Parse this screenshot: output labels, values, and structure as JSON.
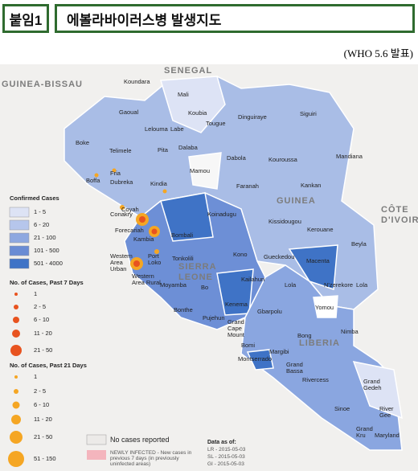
{
  "header": {
    "tag": "붙임1",
    "title": "에볼라바이러스병 발생지도",
    "source": "(WHO 5.6 발표)"
  },
  "countries": [
    "SENEGAL",
    "GUINEA-BISSAU",
    "GUINEA",
    "SIERRA LEONE",
    "LIBERIA",
    "CÔTE D'IVOIRE"
  ],
  "regions": [
    "Koundara",
    "Mali",
    "Gaoual",
    "Koubia",
    "Dinguiraye",
    "Siguiri",
    "Lelouma",
    "Labe",
    "Tougue",
    "Boke",
    "Telimele",
    "Pita",
    "Dalaba",
    "Mandiana",
    "Dabola",
    "Kouroussa",
    "Fria",
    "Boffa",
    "Dubreka",
    "Kindia",
    "Mamou",
    "Kankan",
    "Faranah",
    "Coyah",
    "Conakry",
    "Forecariah",
    "Koinadugu",
    "Kissidougou",
    "Kambia",
    "Bombali",
    "Kerouane",
    "Beyla",
    "Western Area Urban",
    "Port Loko",
    "Tonkolili",
    "Kono",
    "Gueckedou",
    "Macenta",
    "Western Area Rural",
    "Moyamba",
    "Bo",
    "Kailahun",
    "Lola",
    "N'zerekore",
    "Lola",
    "Kenema",
    "Bonthe",
    "Yomou",
    "Pujehun",
    "Gbarpolu",
    "Grand Cape Mount",
    "Bong",
    "Nimba",
    "Bomi",
    "Margibi",
    "Montserrado",
    "Grand Bassa",
    "Rivercess",
    "Grand Gedeh",
    "Sinoe",
    "River Gee",
    "Grand Kru",
    "Maryland"
  ],
  "legend": {
    "confirmed": {
      "title": "Confirmed Cases",
      "items": [
        "1 - 5",
        "6 - 20",
        "21 - 100",
        "101 - 500",
        "501 - 4000"
      ]
    },
    "past7": {
      "title": "No. of Cases, Past 7 Days",
      "items": [
        "1",
        "2 - 5",
        "6 - 10",
        "11 - 20",
        "21 - 50"
      ]
    },
    "past21": {
      "title": "No. of Cases, Past 21 Days",
      "items": [
        "1",
        "2 - 5",
        "6 - 10",
        "11 - 20",
        "21 - 50",
        "51 - 150"
      ]
    },
    "no_cases": "No cases reported",
    "newly": "NEWLY INFECTED - New cases in previous 7 days (in previously uninfected areas)",
    "data_as_of": {
      "title": "Data as of:",
      "items": [
        "LR - 2015-05-03",
        "SL - 2015-05-03",
        "GI - 2015-05-03"
      ]
    }
  }
}
